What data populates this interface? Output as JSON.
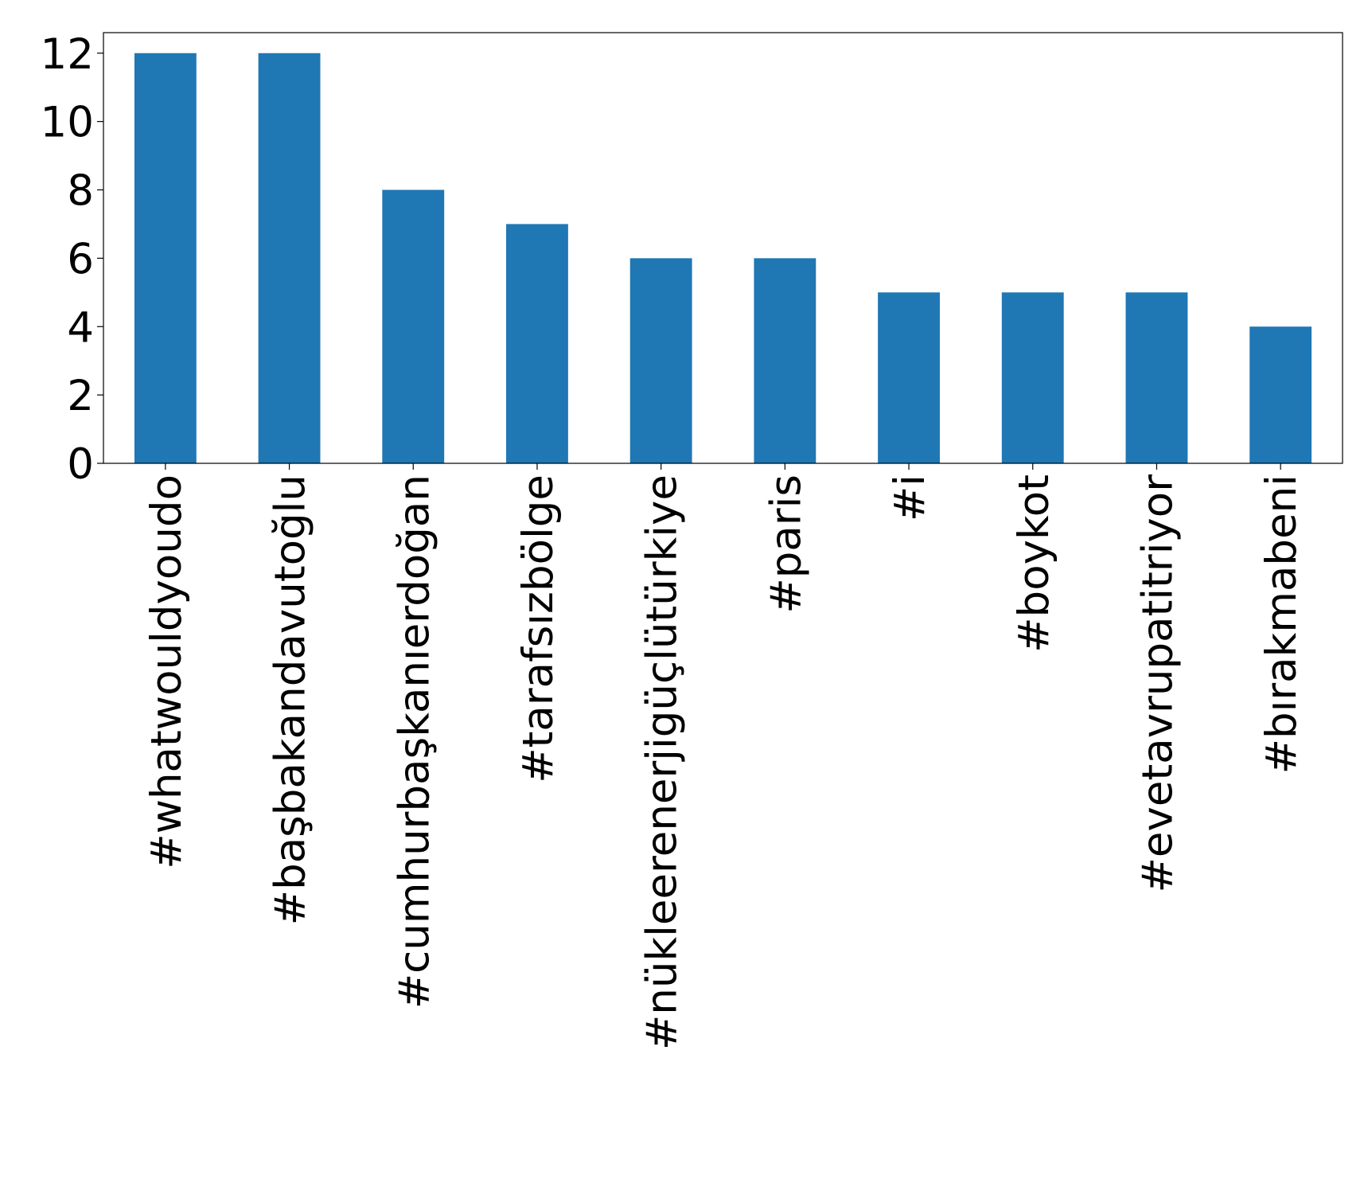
{
  "chart_data": {
    "type": "bar",
    "categories": [
      "#whatwouldyoudo",
      "#başbakandavutoğlu",
      "#cumhurbaşkanıerdoğan",
      "#tarafsızbölge",
      "#nükleerenerjigüçlütürkiye",
      "#paris",
      "#i",
      "#boykot",
      "#evetavrupatitriyor",
      "#bırakmabeni"
    ],
    "values": [
      12,
      12,
      8,
      7,
      6,
      6,
      5,
      5,
      5,
      4
    ],
    "color": "#1f77b4",
    "ylim": [
      0,
      12.6
    ],
    "yticks": [
      0,
      2,
      4,
      6,
      8,
      10,
      12
    ],
    "grid": false
  }
}
